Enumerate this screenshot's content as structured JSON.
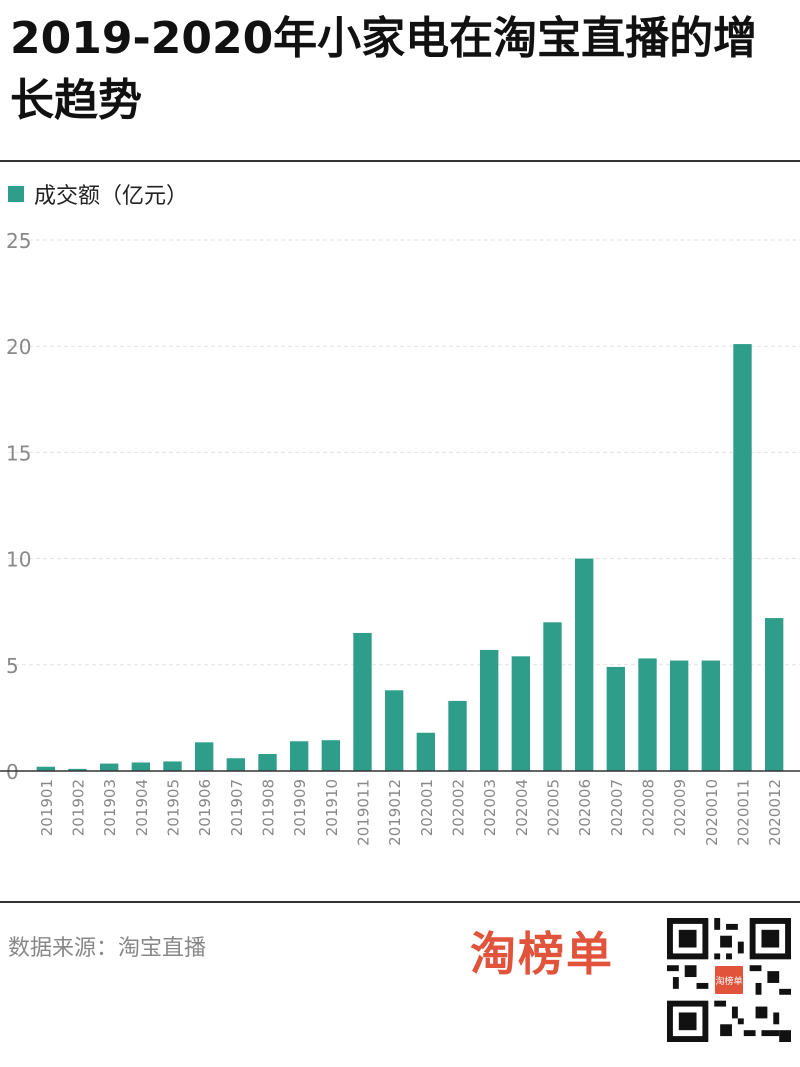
{
  "title": "2019-2020年小家电在淘宝直播的增长趋势",
  "legend_label": "成交额（亿元）",
  "source": "数据来源：淘宝直播",
  "brand": "淘榜单",
  "qr_center_text": "淘榜单",
  "colors": {
    "bar": "#2e9e8a",
    "axis": "#333333",
    "grid": "#e2e2e2",
    "tick": "#888888",
    "brand": "#e2533c"
  },
  "chart_data": {
    "type": "bar",
    "title": "2019-2020年小家电在淘宝直播的增长趋势",
    "xlabel": "",
    "ylabel": "成交额（亿元）",
    "ylim": [
      0,
      25
    ],
    "yticks": [
      0,
      5,
      10,
      15,
      20,
      25
    ],
    "categories": [
      "201901",
      "201902",
      "201903",
      "201904",
      "201905",
      "201906",
      "201907",
      "201908",
      "201909",
      "201910",
      "2019011",
      "2019012",
      "202001",
      "202002",
      "202003",
      "202004",
      "202005",
      "202006",
      "202007",
      "202008",
      "202009",
      "2020010",
      "2020011",
      "2020012"
    ],
    "series": [
      {
        "name": "成交额（亿元）",
        "values": [
          0.2,
          0.1,
          0.35,
          0.4,
          0.45,
          1.35,
          0.6,
          0.8,
          1.4,
          1.45,
          6.5,
          3.8,
          1.8,
          3.3,
          5.7,
          5.4,
          7.0,
          10.0,
          4.9,
          5.3,
          5.2,
          5.2,
          20.1,
          7.2
        ]
      }
    ],
    "grid": true,
    "legend": "top-left"
  }
}
